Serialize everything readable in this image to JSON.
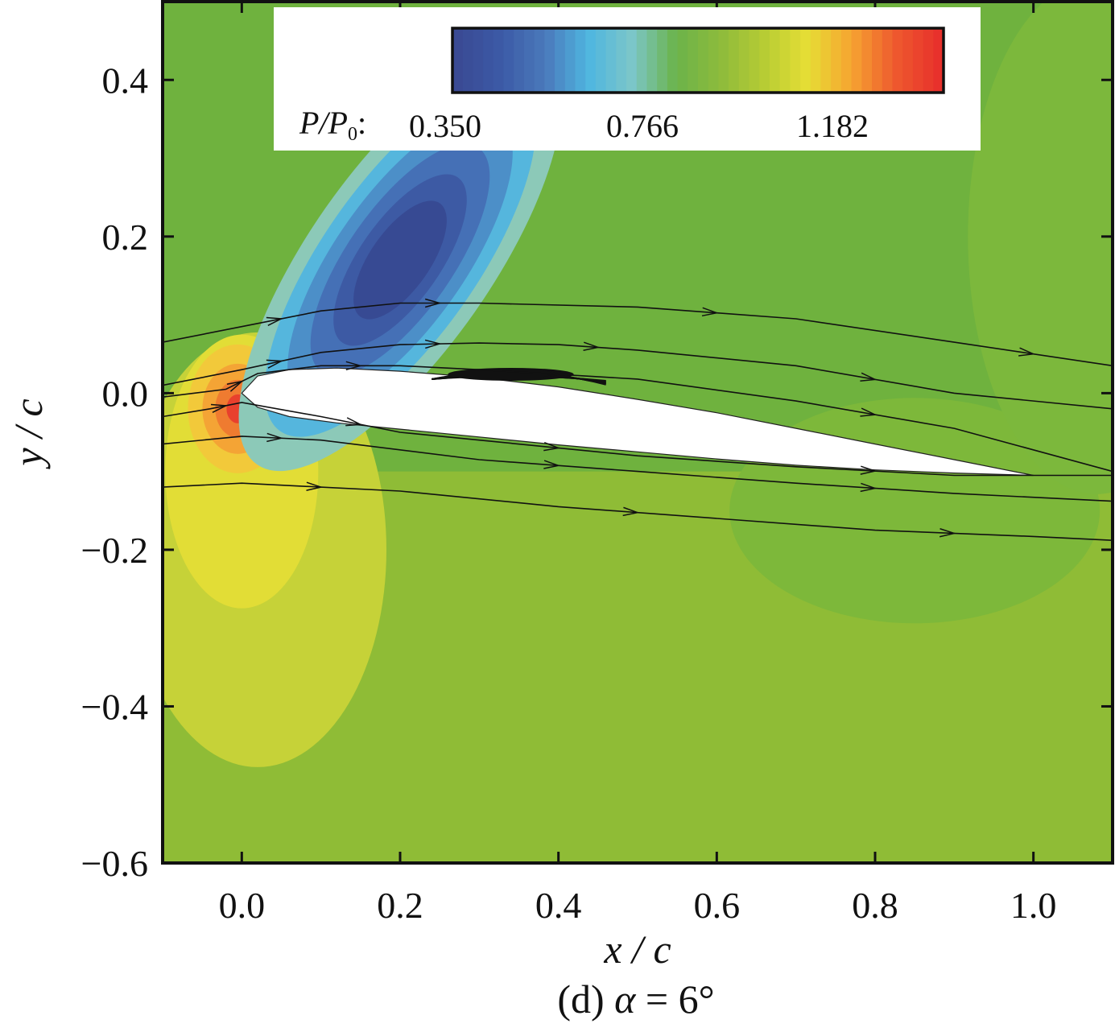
{
  "chart_data": {
    "type": "heatmap",
    "subtype": "pressure contour with streamlines",
    "xlabel": "x / c",
    "ylabel": "y / c",
    "xlim": [
      -0.1,
      1.1
    ],
    "ylim": [
      -0.6,
      0.5
    ],
    "x_ticks": [
      "0.0",
      "0.2",
      "0.4",
      "0.6",
      "0.8",
      "1.0"
    ],
    "y_ticks": [
      "0.4",
      "0.2",
      "0.0",
      "−0.2",
      "−0.4",
      "−0.6"
    ],
    "x_tick_values": [
      0.0,
      0.2,
      0.4,
      0.6,
      0.8,
      1.0
    ],
    "y_tick_values": [
      0.4,
      0.2,
      0.0,
      -0.2,
      -0.4,
      -0.6
    ],
    "colorbar": {
      "variable": "P/P",
      "variable_subscript": "0",
      "labels": [
        "0.350",
        "0.766",
        "1.182"
      ],
      "min": 0.35,
      "max": 1.45,
      "colors": [
        "#3a4a94",
        "#3c5aa6",
        "#4a79bb",
        "#4fb6e0",
        "#7cc6c8",
        "#6bb34a",
        "#8dbb3c",
        "#b6cc34",
        "#e6de35",
        "#f6a531",
        "#ee5a2e",
        "#e8312c"
      ]
    },
    "caption_prefix": "(d)",
    "caption_symbol": "α",
    "caption_value": "= 6°",
    "airfoil": {
      "leading_edge": [
        0.0,
        0.0
      ],
      "trailing_edge": [
        1.0,
        -0.105
      ],
      "upper": [
        [
          0.0,
          0.0
        ],
        [
          0.02,
          0.022
        ],
        [
          0.06,
          0.03
        ],
        [
          0.12,
          0.032
        ],
        [
          0.2,
          0.028
        ],
        [
          0.3,
          0.02
        ],
        [
          0.4,
          0.008
        ],
        [
          0.5,
          -0.008
        ],
        [
          0.6,
          -0.025
        ],
        [
          0.7,
          -0.045
        ],
        [
          0.8,
          -0.065
        ],
        [
          0.9,
          -0.085
        ],
        [
          1.0,
          -0.105
        ]
      ],
      "lower": [
        [
          0.0,
          0.0
        ],
        [
          0.02,
          -0.018
        ],
        [
          0.06,
          -0.03
        ],
        [
          0.12,
          -0.038
        ],
        [
          0.2,
          -0.046
        ],
        [
          0.3,
          -0.056
        ],
        [
          0.4,
          -0.066
        ],
        [
          0.5,
          -0.075
        ],
        [
          0.6,
          -0.084
        ],
        [
          0.7,
          -0.092
        ],
        [
          0.8,
          -0.098
        ],
        [
          0.9,
          -0.102
        ],
        [
          1.0,
          -0.105
        ]
      ]
    },
    "pressure_regions": [
      {
        "region": "freestream",
        "p": 0.9
      },
      {
        "region": "suction peak above upper surface",
        "p": 0.4
      },
      {
        "region": "stagnation point at leading edge",
        "p": 1.4
      }
    ],
    "streamlines": [
      [
        [
          -0.1,
          0.065
        ],
        [
          0.0,
          0.085
        ],
        [
          0.1,
          0.105
        ],
        [
          0.2,
          0.115
        ],
        [
          0.3,
          0.115
        ],
        [
          0.5,
          0.11
        ],
        [
          0.7,
          0.095
        ],
        [
          0.9,
          0.065
        ],
        [
          1.1,
          0.035
        ]
      ],
      [
        [
          -0.1,
          0.01
        ],
        [
          0.0,
          0.03
        ],
        [
          0.1,
          0.052
        ],
        [
          0.2,
          0.062
        ],
        [
          0.3,
          0.064
        ],
        [
          0.4,
          0.062
        ],
        [
          0.5,
          0.055
        ],
        [
          0.7,
          0.035
        ],
        [
          0.9,
          0.0
        ],
        [
          1.1,
          -0.02
        ]
      ],
      [
        [
          -0.1,
          -0.005
        ],
        [
          -0.02,
          0.005
        ],
        [
          0.02,
          0.025
        ],
        [
          0.1,
          0.035
        ],
        [
          0.2,
          0.035
        ],
        [
          0.3,
          0.03
        ],
        [
          0.5,
          0.018
        ],
        [
          0.7,
          -0.01
        ],
        [
          0.9,
          -0.045
        ],
        [
          1.1,
          -0.1
        ]
      ],
      [
        [
          -0.1,
          -0.03
        ],
        [
          -0.04,
          -0.02
        ],
        [
          0.0,
          -0.012
        ],
        [
          0.1,
          -0.03
        ],
        [
          0.2,
          -0.05
        ],
        [
          0.3,
          -0.06
        ],
        [
          0.5,
          -0.08
        ],
        [
          0.7,
          -0.094
        ],
        [
          0.9,
          -0.105
        ],
        [
          1.1,
          -0.105
        ]
      ],
      [
        [
          -0.1,
          -0.065
        ],
        [
          0.0,
          -0.055
        ],
        [
          0.1,
          -0.06
        ],
        [
          0.3,
          -0.085
        ],
        [
          0.5,
          -0.1
        ],
        [
          0.7,
          -0.115
        ],
        [
          0.9,
          -0.128
        ],
        [
          1.1,
          -0.138
        ]
      ],
      [
        [
          -0.1,
          -0.12
        ],
        [
          0.0,
          -0.115
        ],
        [
          0.2,
          -0.125
        ],
        [
          0.4,
          -0.145
        ],
        [
          0.6,
          -0.16
        ],
        [
          0.8,
          -0.175
        ],
        [
          1.0,
          -0.183
        ],
        [
          1.1,
          -0.188
        ]
      ]
    ],
    "separation_bubble": {
      "x_start": 0.24,
      "x_end": 0.46,
      "y": 0.022
    }
  }
}
